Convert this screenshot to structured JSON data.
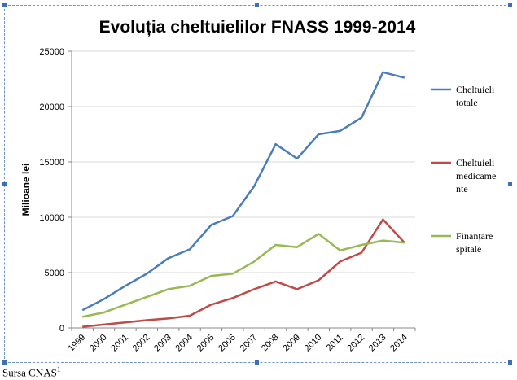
{
  "source": {
    "text": "Sursa CNAS",
    "footnote": "1"
  },
  "chart_data": {
    "type": "line",
    "title": "Evoluția cheltuielilor FNASS 1999-2014",
    "xlabel": "",
    "ylabel": "Milioane lei",
    "categories": [
      "1999",
      "2000",
      "2001",
      "2002",
      "2003",
      "2004",
      "2005",
      "2006",
      "2007",
      "2008",
      "2009",
      "2010",
      "2011",
      "2012",
      "2013",
      "2014"
    ],
    "ylim": [
      0,
      25000
    ],
    "yticks": [
      "0",
      "5000",
      "10000",
      "15000",
      "20000",
      "25000"
    ],
    "grid": true,
    "legend_position": "right",
    "series": [
      {
        "name": "Cheltuieli totale",
        "legend_lines": [
          "Cheltuieli",
          "totale"
        ],
        "color": "#4a7ebb",
        "values": [
          1600,
          2600,
          3800,
          4900,
          6300,
          7100,
          9300,
          10100,
          12800,
          16600,
          15300,
          17500,
          17800,
          19000,
          23100,
          22600
        ]
      },
      {
        "name": "Cheltuieli medicamente",
        "legend_lines": [
          "Cheltuieli",
          "medicame",
          "nte"
        ],
        "color": "#be4b48",
        "values": [
          100,
          300,
          500,
          700,
          850,
          1100,
          2100,
          2700,
          3500,
          4200,
          3500,
          4300,
          6000,
          6800,
          9800,
          7700
        ]
      },
      {
        "name": "Finanțare spitale",
        "legend_lines": [
          "Finanțare",
          "spitale"
        ],
        "color": "#98b954",
        "values": [
          1000,
          1400,
          2100,
          2800,
          3500,
          3800,
          4700,
          4900,
          6000,
          7500,
          7300,
          8500,
          7000,
          7500,
          7900,
          7700
        ]
      }
    ]
  }
}
